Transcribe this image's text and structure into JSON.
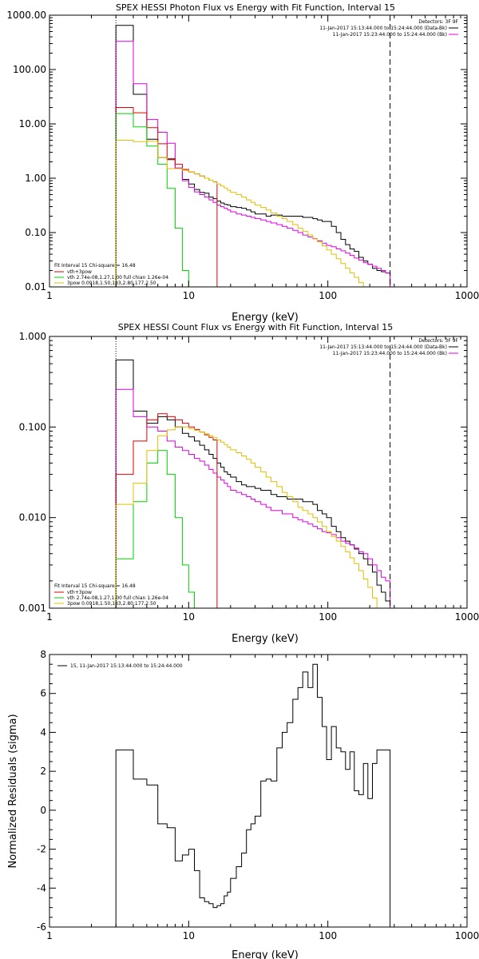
{
  "chart_data": [
    {
      "type": "line",
      "title": "SPEX HESSI Photon Flux vs Energy with Fit Function, Interval 15",
      "xlabel": "Energy (keV)",
      "ylabel": "",
      "xscale": "log",
      "yscale": "log",
      "xlim": [
        1,
        1000
      ],
      "ylim": [
        0.01,
        1000
      ],
      "x_ticks": [
        1,
        10,
        100,
        1000
      ],
      "x_tick_labels": [
        "1",
        "10",
        "100",
        "1000"
      ],
      "y_ticks": [
        0.01,
        0.1,
        1,
        10,
        100,
        1000
      ],
      "y_tick_labels": [
        "0.01",
        "0.10",
        "1.00",
        "10.00",
        "100.00",
        "1000.00"
      ],
      "info": {
        "detectors": "Detectors: 3F 9F",
        "line1": "11-Jan-2017 15:13:44.000 to 15:24:44.000 (Data-Bk)",
        "line2": "11-Jan-2017 15:23:44.000 to 15:24:44.000 (Bk)"
      },
      "fit_legend": {
        "header": "Fit Interval 15   Chi-square = 16.48",
        "lines": [
          "vth+3pow",
          "vth 2.74e-08,1.27,1.00  full chian 1.26e-04",
          "3pow 0.0918,1.50,183,2.80,177,2.50"
        ]
      },
      "vlines": [
        {
          "x": 3,
          "style": "dotted"
        },
        {
          "x": 280,
          "style": "dashed"
        }
      ],
      "series": [
        {
          "color": "#000000",
          "edges": [
            3,
            4,
            5,
            6,
            7,
            8,
            9,
            10,
            11,
            12,
            13,
            14,
            15,
            16,
            17,
            18,
            19,
            20,
            22,
            24,
            26,
            28,
            30,
            33,
            36,
            39,
            43,
            47,
            51,
            56,
            61,
            66,
            72,
            78,
            84,
            91,
            98,
            106,
            115,
            124,
            134,
            144,
            155,
            167,
            180,
            194,
            209,
            225,
            242,
            260,
            280
          ],
          "values": [
            650,
            35,
            5.2,
            2.4,
            2.2,
            1.5,
            0.95,
            0.78,
            0.62,
            0.55,
            0.53,
            0.45,
            0.42,
            0.38,
            0.35,
            0.33,
            0.32,
            0.3,
            0.29,
            0.28,
            0.26,
            0.24,
            0.22,
            0.22,
            0.2,
            0.21,
            0.21,
            0.2,
            0.2,
            0.2,
            0.2,
            0.19,
            0.19,
            0.18,
            0.17,
            0.16,
            0.16,
            0.13,
            0.1,
            0.075,
            0.06,
            0.05,
            0.045,
            0.035,
            0.03,
            0.026,
            0.022,
            0.02,
            0.019,
            0.018
          ]
        },
        {
          "color": "#e000e0",
          "edges": [
            3,
            4,
            5,
            6,
            7,
            8,
            9,
            10,
            11,
            12,
            13,
            14,
            15,
            16,
            17,
            18,
            19,
            20,
            22,
            24,
            26,
            28,
            30,
            33,
            36,
            39,
            43,
            47,
            51,
            56,
            61,
            66,
            72,
            78,
            84,
            91,
            98,
            106,
            115,
            124,
            134,
            144,
            155,
            167,
            180,
            194,
            209,
            225,
            242,
            260,
            280
          ],
          "values": [
            330,
            55,
            12,
            7.0,
            4.4,
            1.55,
            0.9,
            0.68,
            0.56,
            0.5,
            0.45,
            0.4,
            0.36,
            0.32,
            0.3,
            0.28,
            0.26,
            0.24,
            0.22,
            0.21,
            0.2,
            0.19,
            0.18,
            0.17,
            0.16,
            0.15,
            0.14,
            0.13,
            0.12,
            0.11,
            0.1,
            0.09,
            0.083,
            0.077,
            0.07,
            0.064,
            0.058,
            0.055,
            0.05,
            0.046,
            0.042,
            0.038,
            0.034,
            0.031,
            0.028,
            0.026,
            0.024,
            0.022,
            0.02,
            0.018
          ]
        },
        {
          "color": "#e00000",
          "edges": [
            3,
            4,
            5,
            6,
            7,
            8,
            9,
            10,
            11,
            12,
            13,
            14,
            15,
            16
          ],
          "values": [
            20,
            16,
            8.5,
            4.3,
            2.3,
            1.8,
            1.45,
            1.3,
            1.2,
            1.1,
            1.0,
            0.92,
            0.86
          ]
        },
        {
          "color": "#00d000",
          "edges": [
            3,
            4,
            5,
            6,
            7,
            8,
            9,
            10,
            11
          ],
          "values": [
            15.5,
            8.8,
            3.9,
            1.8,
            0.65,
            0.12,
            0.02,
            0.008
          ]
        },
        {
          "color": "#e0c000",
          "edges": [
            3,
            4,
            5,
            6,
            7,
            8,
            9,
            10,
            11,
            12,
            13,
            14,
            15,
            16,
            17,
            18,
            19,
            20,
            22,
            24,
            26,
            28,
            30,
            33,
            36,
            39,
            43,
            47,
            51,
            56,
            61,
            66,
            72,
            78,
            84,
            91,
            98,
            106,
            115,
            124,
            134,
            144,
            155,
            167,
            180,
            194,
            209
          ],
          "values": [
            5.0,
            4.7,
            4.8,
            2.4,
            1.5,
            1.5,
            1.4,
            1.3,
            1.2,
            1.1,
            1.0,
            0.92,
            0.85,
            0.78,
            0.72,
            0.66,
            0.6,
            0.55,
            0.5,
            0.45,
            0.4,
            0.36,
            0.32,
            0.29,
            0.26,
            0.23,
            0.2,
            0.18,
            0.16,
            0.14,
            0.12,
            0.105,
            0.09,
            0.078,
            0.067,
            0.057,
            0.048,
            0.04,
            0.033,
            0.027,
            0.022,
            0.018,
            0.015,
            0.012,
            0.01,
            0.008
          ]
        }
      ]
    },
    {
      "type": "line",
      "title": "SPEX HESSI Count Flux vs Energy with Fit Function, Interval 15",
      "xlabel": "Energy (keV)",
      "ylabel": "",
      "xscale": "log",
      "yscale": "log",
      "xlim": [
        1,
        1000
      ],
      "ylim": [
        0.001,
        1.0
      ],
      "x_ticks": [
        1,
        10,
        100,
        1000
      ],
      "x_tick_labels": [
        "1",
        "10",
        "100",
        "1000"
      ],
      "y_ticks": [
        0.001,
        0.01,
        0.1,
        1.0
      ],
      "y_tick_labels": [
        "0.001",
        "0.010",
        "0.100",
        "1.000"
      ],
      "info": {
        "detectors": "Detectors: 3F 9F",
        "line1": "11-Jan-2017 15:13:44.000 to 15:24:44.000 (Data-Bk)",
        "line2": "11-Jan-2017 15:23:44.000 to 15:24:44.000 (Bk)"
      },
      "fit_legend": {
        "header": "Fit Interval 15   Chi-square = 16.48",
        "lines": [
          "vth+3pow",
          "vth 2.74e-08,1.27,1.00  full chian 1.26e-04",
          "3pow 0.0918,1.50,183,2.80,177,2.50"
        ]
      },
      "vlines": [
        {
          "x": 3,
          "style": "dotted"
        },
        {
          "x": 280,
          "style": "dashed"
        }
      ],
      "series": [
        {
          "color": "#000000",
          "edges": [
            3,
            4,
            5,
            6,
            7,
            8,
            9,
            10,
            11,
            12,
            13,
            14,
            15,
            16,
            17,
            18,
            19,
            20,
            22,
            24,
            26,
            28,
            30,
            33,
            36,
            39,
            43,
            47,
            51,
            56,
            61,
            66,
            72,
            78,
            84,
            91,
            98,
            106,
            115,
            124,
            134,
            144,
            155,
            167,
            180,
            194,
            209,
            225,
            242,
            260,
            280
          ],
          "values": [
            0.55,
            0.15,
            0.11,
            0.13,
            0.12,
            0.1,
            0.085,
            0.078,
            0.07,
            0.063,
            0.056,
            0.05,
            0.045,
            0.04,
            0.036,
            0.032,
            0.03,
            0.028,
            0.025,
            0.023,
            0.022,
            0.022,
            0.021,
            0.02,
            0.02,
            0.018,
            0.017,
            0.017,
            0.016,
            0.016,
            0.016,
            0.015,
            0.015,
            0.014,
            0.012,
            0.011,
            0.01,
            0.008,
            0.007,
            0.006,
            0.0055,
            0.005,
            0.0045,
            0.004,
            0.0035,
            0.003,
            0.0025,
            0.0018,
            0.0015,
            0.0012
          ]
        },
        {
          "color": "#e000e0",
          "edges": [
            3,
            4,
            5,
            6,
            7,
            8,
            9,
            10,
            11,
            12,
            13,
            14,
            15,
            16,
            17,
            18,
            19,
            20,
            22,
            24,
            26,
            28,
            30,
            33,
            36,
            39,
            43,
            47,
            51,
            56,
            61,
            66,
            72,
            78,
            84,
            91,
            98,
            106,
            115,
            124,
            134,
            144,
            155,
            167,
            180,
            194,
            209,
            225,
            242,
            260,
            280
          ],
          "values": [
            0.26,
            0.13,
            0.1,
            0.09,
            0.07,
            0.06,
            0.055,
            0.05,
            0.045,
            0.042,
            0.038,
            0.034,
            0.031,
            0.028,
            0.026,
            0.024,
            0.022,
            0.02,
            0.019,
            0.018,
            0.017,
            0.016,
            0.015,
            0.014,
            0.013,
            0.012,
            0.012,
            0.011,
            0.011,
            0.01,
            0.0095,
            0.009,
            0.0085,
            0.008,
            0.0075,
            0.007,
            0.0068,
            0.0065,
            0.006,
            0.0055,
            0.0052,
            0.005,
            0.0046,
            0.0042,
            0.004,
            0.0035,
            0.003,
            0.0026,
            0.0022,
            0.002
          ]
        },
        {
          "color": "#e00000",
          "edges": [
            3,
            4,
            5,
            6,
            7,
            8,
            9,
            10,
            11,
            12,
            13,
            14,
            15,
            16
          ],
          "values": [
            0.03,
            0.07,
            0.12,
            0.14,
            0.13,
            0.12,
            0.11,
            0.1,
            0.094,
            0.088,
            0.082,
            0.077,
            0.072
          ]
        },
        {
          "color": "#00d000",
          "edges": [
            3,
            4,
            5,
            6,
            7,
            8,
            9,
            10,
            11
          ],
          "values": [
            0.0035,
            0.015,
            0.04,
            0.055,
            0.03,
            0.01,
            0.003,
            0.0015
          ]
        },
        {
          "color": "#e0c000",
          "edges": [
            3,
            4,
            5,
            6,
            7,
            8,
            9,
            10,
            11,
            12,
            13,
            14,
            15,
            16,
            17,
            18,
            19,
            20,
            22,
            24,
            26,
            28,
            30,
            33,
            36,
            39,
            43,
            47,
            51,
            56,
            61,
            66,
            72,
            78,
            84,
            91,
            98,
            106,
            115,
            124,
            134,
            144,
            155,
            167,
            180,
            194,
            209,
            225,
            242
          ],
          "values": [
            0.014,
            0.024,
            0.055,
            0.08,
            0.093,
            0.1,
            0.1,
            0.096,
            0.092,
            0.088,
            0.084,
            0.08,
            0.076,
            0.072,
            0.068,
            0.064,
            0.06,
            0.056,
            0.052,
            0.048,
            0.044,
            0.04,
            0.036,
            0.032,
            0.028,
            0.025,
            0.022,
            0.019,
            0.017,
            0.015,
            0.013,
            0.012,
            0.011,
            0.01,
            0.009,
            0.008,
            0.007,
            0.0062,
            0.0055,
            0.0048,
            0.0042,
            0.0036,
            0.0031,
            0.0026,
            0.0021,
            0.0017,
            0.0013,
            0.001
          ]
        }
      ]
    },
    {
      "type": "line",
      "title": "",
      "xlabel": "Energy (keV)",
      "ylabel": "Normalized Residuals (sigma)",
      "xscale": "log",
      "yscale": "linear",
      "xlim": [
        1,
        1000
      ],
      "ylim": [
        -6,
        8
      ],
      "x_ticks": [
        1,
        10,
        100,
        1000
      ],
      "x_tick_labels": [
        "1",
        "10",
        "100",
        "1000"
      ],
      "y_ticks": [
        -6,
        -4,
        -2,
        0,
        2,
        4,
        6,
        8
      ],
      "y_tick_labels": [
        "-6",
        "-4",
        "-2",
        "0",
        "2",
        "4",
        "6",
        "8"
      ],
      "legend": "15, 11-Jan-2017 15:13:44.000 to 15:24:44.000",
      "series": [
        {
          "color": "#000000",
          "edges": [
            3,
            4,
            5,
            6,
            7,
            8,
            9,
            10,
            11,
            12,
            13,
            14,
            15,
            16,
            17,
            18,
            19,
            20,
            22,
            24,
            26,
            28,
            30,
            33,
            36,
            39,
            43,
            47,
            51,
            56,
            61,
            66,
            72,
            78,
            84,
            91,
            98,
            106,
            115,
            124,
            134,
            144,
            155,
            167,
            180,
            194,
            209,
            225,
            242,
            260,
            280
          ],
          "values": [
            3.1,
            1.6,
            1.3,
            -0.7,
            -0.9,
            -2.6,
            -2.3,
            -2.0,
            -3.1,
            -4.5,
            -4.7,
            -4.8,
            -5.0,
            -4.9,
            -4.8,
            -4.4,
            -4.2,
            -3.5,
            -2.9,
            -2.2,
            -1.0,
            -0.7,
            -0.3,
            1.5,
            1.6,
            1.5,
            3.2,
            4.0,
            4.5,
            5.7,
            6.3,
            7.1,
            6.3,
            7.5,
            5.8,
            4.3,
            2.6,
            4.3,
            3.2,
            3.0,
            2.1,
            3.0,
            1.0,
            0.8,
            2.4,
            0.6,
            2.4,
            3.1,
            3.1,
            3.1
          ]
        }
      ]
    }
  ]
}
